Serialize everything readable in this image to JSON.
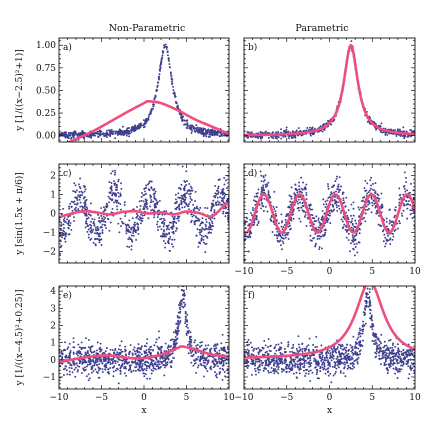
{
  "figure": {
    "column_titles": [
      "Non-Parametric",
      "Parametric"
    ],
    "row_ylabels": [
      "y [1/((x−2.5)²+1)]",
      "y [sin(1.5x + π/6)]",
      "y [1/((x−4.5)²+0.25)]"
    ],
    "xlabel": "x"
  },
  "colors": {
    "scatter": "#3f3f8f",
    "fit": "#ee4f7d"
  },
  "chart_data": [
    {
      "type": "scatter",
      "panel": "a)",
      "title": "Non-Parametric",
      "ylabel": "y [1/((x−2.5)²+1)]",
      "xlim": [
        -10,
        10
      ],
      "ylim": [
        -0.07,
        1.08
      ],
      "xticks": [
        -10,
        -5,
        0,
        5,
        10
      ],
      "yticks": [
        0.0,
        0.25,
        0.5,
        0.75,
        1.0
      ],
      "ytick_labels": [
        "0.00",
        "0.25",
        "0.50",
        "0.75",
        "1.00"
      ],
      "show_xtick_labels": false,
      "scatter": {
        "name": "samples",
        "function": "lorentzian",
        "center": 2.5,
        "width2": 1.0,
        "noise_sd": 0.02,
        "n": 700
      },
      "fit": {
        "name": "fit",
        "x": [
          -10,
          -6,
          -2,
          0,
          0.5,
          2,
          4,
          6,
          8,
          10
        ],
        "y": [
          -0.12,
          0.05,
          0.26,
          0.36,
          0.38,
          0.36,
          0.28,
          0.18,
          0.1,
          0.02
        ]
      }
    },
    {
      "type": "scatter",
      "panel": "b)",
      "title": "Parametric",
      "ylabel": "",
      "xlim": [
        -10,
        10
      ],
      "ylim": [
        -0.07,
        1.08
      ],
      "xticks": [
        -10,
        -5,
        0,
        5,
        10
      ],
      "yticks": [
        0.0,
        0.25,
        0.5,
        0.75,
        1.0
      ],
      "ytick_labels": [
        "",
        "",
        "",
        "",
        ""
      ],
      "show_xtick_labels": false,
      "scatter": {
        "name": "samples",
        "function": "lorentzian",
        "center": 2.5,
        "width2": 1.0,
        "noise_sd": 0.02,
        "n": 700
      },
      "fit": {
        "name": "fit",
        "function": "lorentzian",
        "center": 2.5,
        "width2": 1.0,
        "amplitude": 1.0,
        "offset": 0.0
      }
    },
    {
      "type": "scatter",
      "panel": "c)",
      "title": "",
      "ylabel": "y [sin(1.5x + π/6)]",
      "xlim": [
        -10,
        10
      ],
      "ylim": [
        -2.6,
        2.6
      ],
      "xticks": [
        -10,
        -5,
        0,
        5,
        10
      ],
      "yticks": [
        -2,
        -1,
        0,
        1,
        2
      ],
      "ytick_labels": [
        "−2",
        "−1",
        "0",
        "1",
        "2"
      ],
      "show_xtick_labels": false,
      "scatter": {
        "name": "samples",
        "function": "sine",
        "omega": 1.5,
        "phase": 0.5236,
        "noise_sd": 0.5,
        "n": 900
      },
      "fit": {
        "name": "fit",
        "x": [
          -10,
          -8.5,
          -7,
          -5.5,
          -4,
          -2.5,
          -1,
          0.5,
          2,
          3.5,
          5,
          6.5,
          8,
          9.5,
          10
        ],
        "y": [
          -0.2,
          0.0,
          0.12,
          0.05,
          -0.05,
          0.08,
          0.12,
          0.0,
          0.05,
          -0.05,
          0.1,
          0.02,
          -0.15,
          0.45,
          0.6
        ]
      }
    },
    {
      "type": "scatter",
      "panel": "d)",
      "title": "",
      "ylabel": "",
      "xlim": [
        -10,
        10
      ],
      "ylim": [
        -2.6,
        2.6
      ],
      "xticks": [
        -10,
        -5,
        0,
        5,
        10
      ],
      "yticks": [
        -2,
        -1,
        0,
        1,
        2
      ],
      "ytick_labels": [
        "",
        "",
        "",
        "",
        ""
      ],
      "show_xtick_labels": true,
      "xtick_labels": [
        "−10",
        "−5",
        "0",
        "5",
        "10"
      ],
      "scatter": {
        "name": "samples",
        "function": "sine",
        "omega": 1.5,
        "phase": 0.5236,
        "noise_sd": 0.5,
        "n": 900
      },
      "fit": {
        "name": "fit",
        "function": "sine",
        "omega": 1.5,
        "phase": 0.5236,
        "amplitude": 1.0
      }
    },
    {
      "type": "scatter",
      "panel": "e)",
      "title": "",
      "ylabel": "y [1/((x−4.5)²+0.25)]",
      "xlim": [
        -10,
        10
      ],
      "ylim": [
        -1.7,
        4.3
      ],
      "xticks": [
        -10,
        -5,
        0,
        5,
        10
      ],
      "yticks": [
        -1,
        0,
        1,
        2,
        3,
        4
      ],
      "ytick_labels": [
        "−1",
        "0",
        "1",
        "2",
        "3",
        "4"
      ],
      "show_xtick_labels": true,
      "xtick_labels": [
        "−10",
        "−5",
        "0",
        "5",
        "10"
      ],
      "xlabel": "x",
      "scatter": {
        "name": "samples",
        "function": "lorentzian",
        "center": 4.5,
        "width2": 0.25,
        "noise_sd": 0.45,
        "n": 1100
      },
      "fit": {
        "name": "fit",
        "x": [
          -10,
          -8,
          -6,
          -4,
          -2,
          0,
          2,
          4,
          4.5,
          6,
          8,
          10
        ],
        "y": [
          -0.15,
          0.05,
          0.2,
          0.25,
          0.12,
          0.1,
          0.3,
          0.7,
          0.78,
          0.6,
          0.3,
          0.2
        ]
      }
    },
    {
      "type": "scatter",
      "panel": "f)",
      "title": "",
      "ylabel": "",
      "xlim": [
        -10,
        10
      ],
      "ylim": [
        -1.7,
        4.3
      ],
      "xticks": [
        -10,
        -5,
        0,
        5,
        10
      ],
      "yticks": [
        -1,
        0,
        1,
        2,
        3,
        4
      ],
      "ytick_labels": [
        "",
        "",
        "",
        "",
        "",
        ""
      ],
      "show_xtick_labels": true,
      "xtick_labels": [
        "−10",
        "−5",
        "0",
        "5",
        "10"
      ],
      "xlabel": "x",
      "scatter": {
        "name": "samples",
        "function": "lorentzian",
        "center": 4.5,
        "width2": 0.25,
        "noise_sd": 0.45,
        "n": 1100
      },
      "fit": {
        "name": "fit",
        "function": "lorentzian",
        "center": 4.7,
        "width2": 4.0,
        "amplitude": 4.5,
        "offset": 0.05
      }
    }
  ]
}
